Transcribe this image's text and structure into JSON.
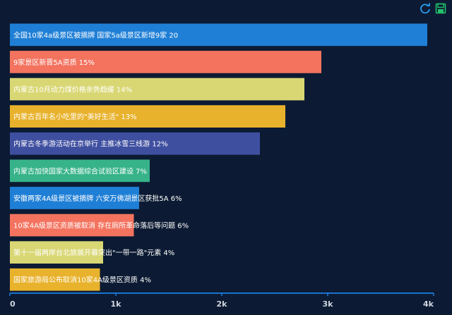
{
  "toolbar": {
    "refresh_icon": "refresh-icon",
    "save_icon": "save-image-icon"
  },
  "chart_data": {
    "type": "bar",
    "orientation": "horizontal",
    "xlim": [
      0,
      4000
    ],
    "xticks": [
      "0",
      "1k",
      "2k",
      "3k",
      "4k"
    ],
    "grid": false,
    "categories": [
      "全国10家4a级景区被摘牌 国家5a级景区新增9家",
      "9家景区新晋5A资质",
      "内蒙古10月动力煤价格亲势趋缓",
      "内蒙古百年名小吃里的\"美好生活\"",
      "内蒙古冬季游活动在京举行 主推冰雪三线游",
      "内蒙古加快国家大数据综合试验区建设",
      "安徽两家4A级景区被摘牌 六安万佛湖景区获批5A",
      "10家4A级景区资质被取消 存在厕所革命落后等问题",
      "第十一届两岸台北旅展开幕突出\"一带一路\"元素",
      "国家旅游局公布取消10家4A级景区资质"
    ],
    "values": [
      3940,
      2940,
      2780,
      2600,
      2360,
      1320,
      1220,
      1170,
      880,
      850
    ],
    "percent_labels": [
      "20",
      "15%",
      "14%",
      "13%",
      "12%",
      "7%",
      "6%",
      "6%",
      "4%",
      "4%"
    ],
    "colors": [
      "#1f7fd6",
      "#f3735f",
      "#d9d774",
      "#e8b22c",
      "#3f4fa0",
      "#37b38a",
      "#1f7fd6",
      "#f3735f",
      "#d9d774",
      "#e8b22c"
    ],
    "axis_color": "#1e90ff"
  }
}
